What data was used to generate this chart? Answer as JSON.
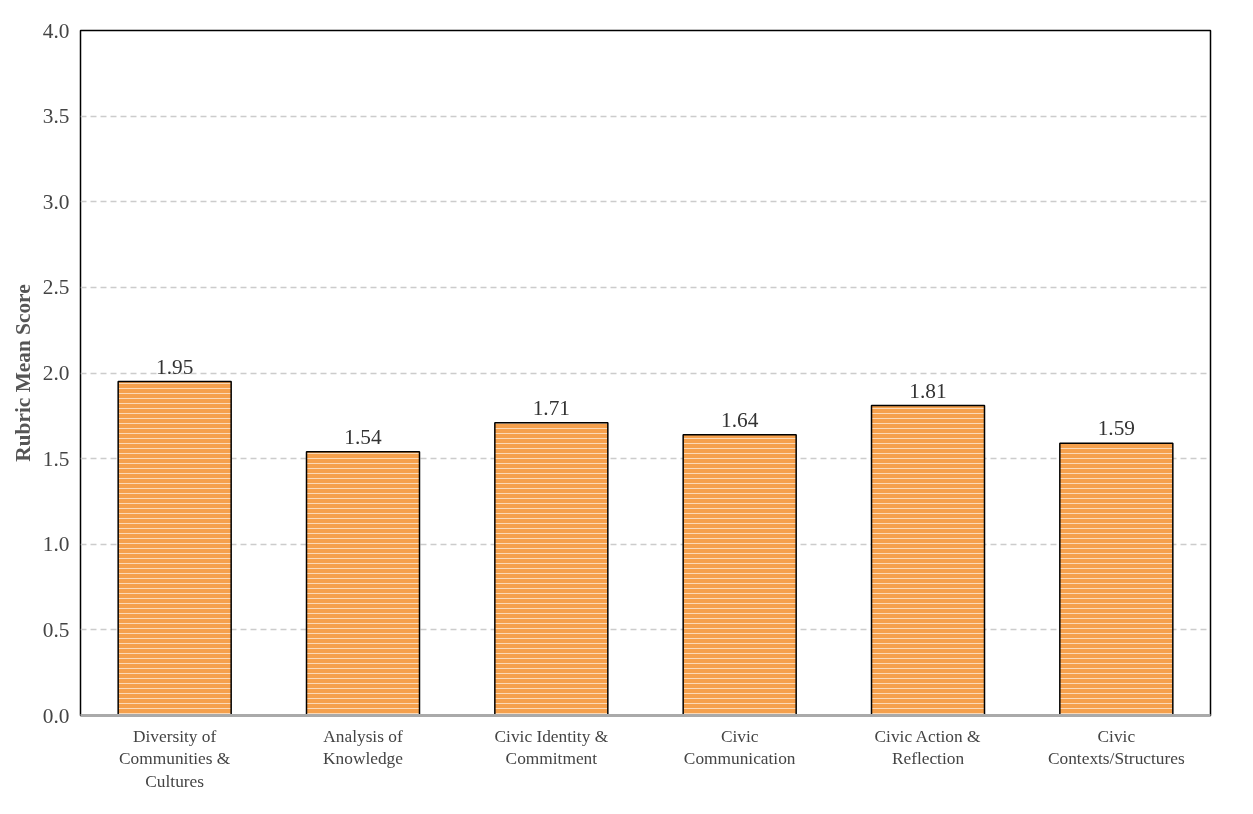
{
  "chart_data": {
    "type": "bar",
    "ylabel": "Rubric Mean Score",
    "categories": [
      "Diversity of\nCommunities &\nCultures",
      "Analysis of\nKnowledge",
      "Civic Identity &\nCommitment",
      "Civic\nCommunication",
      "Civic Action &\nReflection",
      "Civic\nContexts/Structures"
    ],
    "values": [
      1.95,
      1.54,
      1.71,
      1.64,
      1.81,
      1.59
    ],
    "color": "#f5a04c",
    "data_labels": true,
    "ylim": [
      0,
      4
    ],
    "yticks": [
      {
        "value": 0,
        "label": "0.0"
      },
      {
        "value": 0.5,
        "label": "0.5"
      },
      {
        "value": 1,
        "label": "1.0"
      },
      {
        "value": 1.5,
        "label": "1.5"
      },
      {
        "value": 2,
        "label": "2.0"
      },
      {
        "value": 2.5,
        "label": "2.5"
      },
      {
        "value": 3,
        "label": "3.0"
      },
      {
        "value": 3.5,
        "label": "3.5"
      },
      {
        "value": 4,
        "label": "4.0"
      }
    ],
    "grid": "y"
  }
}
